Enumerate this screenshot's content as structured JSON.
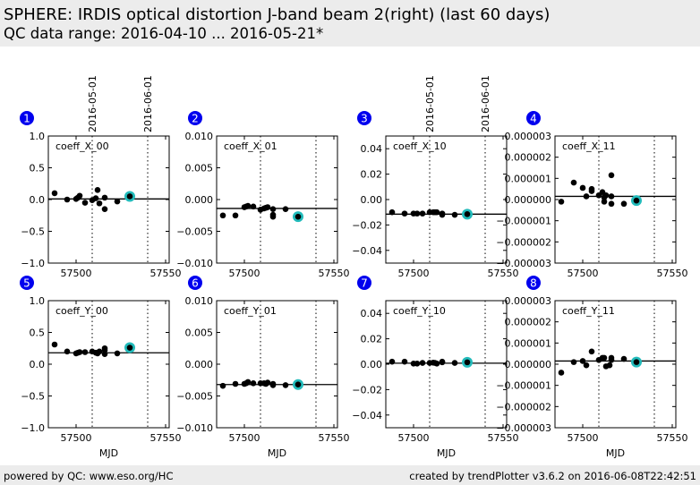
{
  "header": {
    "title": "SPHERE: IRDIS optical distortion J-band beam 2(right) (last 60 days)",
    "subtitle": "QC data range: 2016-04-10 ... 2016-05-21*"
  },
  "footer": {
    "left": "powered by QC: www.eso.org/HC",
    "right": "created by trendPlotter v3.6.2 on 2016-06-08T22:42:51"
  },
  "colors": {
    "point": "#000000",
    "highlight": "#22bbbb",
    "badge": "#0000ee"
  },
  "chart_data": {
    "type": "scatter",
    "xlabel": "MJD",
    "xlim": [
      57484.5,
      57552
    ],
    "xticks": [
      57500,
      57550
    ],
    "date_markers": [
      {
        "mjd": 57509,
        "label": "2016-05-01"
      },
      {
        "mjd": 57540,
        "label": "2016-06-01"
      }
    ],
    "panels": [
      {
        "badge": "1",
        "label": "coeff_X_00",
        "ylim": [
          -1,
          1
        ],
        "yticks": [
          "-1.0",
          "-0.5",
          "0.0",
          "0.5",
          "1.0"
        ],
        "ytick_values": [
          -1,
          -0.5,
          0,
          0.5,
          1
        ],
        "mean": 0.01,
        "points": [
          [
            57488,
            0.1
          ],
          [
            57495,
            0.0
          ],
          [
            57500,
            0.01
          ],
          [
            57501,
            0.03
          ],
          [
            57502,
            0.06
          ],
          [
            57505,
            -0.05
          ],
          [
            57509,
            -0.01
          ],
          [
            57511,
            0.02
          ],
          [
            57512,
            0.15
          ],
          [
            57513,
            -0.06
          ],
          [
            57516,
            0.03
          ],
          [
            57516,
            -0.15
          ],
          [
            57523,
            -0.03
          ]
        ],
        "highlight": [
          57530,
          0.05
        ]
      },
      {
        "badge": "2",
        "label": "coeff_X_01",
        "ylim": [
          -0.01,
          0.01
        ],
        "yticks": [
          "-0.010",
          "-0.005",
          "0.000",
          "0.005",
          "0.010"
        ],
        "ytick_values": [
          -0.01,
          -0.005,
          0,
          0.005,
          0.01
        ],
        "mean": -0.0014,
        "points": [
          [
            57488,
            -0.0025
          ],
          [
            57495,
            -0.0025
          ],
          [
            57500,
            -0.0012
          ],
          [
            57501,
            -0.0011
          ],
          [
            57502,
            -0.001
          ],
          [
            57505,
            -0.0011
          ],
          [
            57509,
            -0.0016
          ],
          [
            57511,
            -0.0014
          ],
          [
            57512,
            -0.0013
          ],
          [
            57513,
            -0.0012
          ],
          [
            57516,
            -0.0015
          ],
          [
            57516,
            -0.0024
          ],
          [
            57516,
            -0.0027
          ],
          [
            57523,
            -0.0015
          ]
        ],
        "highlight": [
          57530,
          -0.0027
        ]
      },
      {
        "badge": "3",
        "label": "coeff_X_10",
        "ylim": [
          -0.05,
          0.05
        ],
        "yticks": [
          "-0.04",
          "-0.02",
          "0.00",
          "0.02",
          "0.04"
        ],
        "ytick_values": [
          -0.04,
          -0.02,
          0,
          0.02,
          0.04
        ],
        "mean": -0.0115,
        "points": [
          [
            57488,
            -0.01
          ],
          [
            57495,
            -0.011
          ],
          [
            57500,
            -0.011
          ],
          [
            57502,
            -0.011
          ],
          [
            57505,
            -0.011
          ],
          [
            57509,
            -0.01
          ],
          [
            57511,
            -0.01
          ],
          [
            57512,
            -0.01
          ],
          [
            57513,
            -0.01
          ],
          [
            57516,
            -0.012
          ],
          [
            57516,
            -0.011
          ],
          [
            57523,
            -0.012
          ]
        ],
        "highlight": [
          57530,
          -0.0115
        ]
      },
      {
        "badge": "4",
        "label": "coeff_X_11",
        "ylim": [
          -3e-06,
          3e-06
        ],
        "yticks": [
          "-0.000003",
          "-0.000002",
          "-0.000001",
          "0.000000",
          "0.000001",
          "0.000002",
          "0.000003"
        ],
        "ytick_values": [
          -3e-06,
          -2e-06,
          -1e-06,
          0,
          1e-06,
          2e-06,
          3e-06
        ],
        "mean": 1.5e-07,
        "points": [
          [
            57488,
            -1e-07
          ],
          [
            57495,
            8e-07
          ],
          [
            57500,
            5.5e-07
          ],
          [
            57502,
            1.5e-07
          ],
          [
            57505,
            5e-07
          ],
          [
            57505,
            4e-07
          ],
          [
            57509,
            2e-07
          ],
          [
            57511,
            3.5e-07
          ],
          [
            57512,
            1e-07
          ],
          [
            57512,
            -1e-07
          ],
          [
            57513,
            2e-07
          ],
          [
            57516,
            1.15e-06
          ],
          [
            57516,
            1.5e-07
          ],
          [
            57516,
            -2e-07
          ],
          [
            57523,
            -2e-07
          ]
        ],
        "highlight": [
          57530,
          -5e-08
        ]
      },
      {
        "badge": "5",
        "label": "coeff_Y_00",
        "ylim": [
          -1,
          1
        ],
        "yticks": [
          "-1.0",
          "-0.5",
          "0.0",
          "0.5",
          "1.0"
        ],
        "ytick_values": [
          -1,
          -0.5,
          0,
          0.5,
          1
        ],
        "mean": 0.18,
        "points": [
          [
            57488,
            0.31
          ],
          [
            57495,
            0.2
          ],
          [
            57500,
            0.17
          ],
          [
            57501,
            0.18
          ],
          [
            57502,
            0.19
          ],
          [
            57505,
            0.19
          ],
          [
            57509,
            0.2
          ],
          [
            57511,
            0.18
          ],
          [
            57512,
            0.17
          ],
          [
            57513,
            0.2
          ],
          [
            57516,
            0.25
          ],
          [
            57516,
            0.22
          ],
          [
            57516,
            0.16
          ],
          [
            57523,
            0.17
          ]
        ],
        "highlight": [
          57530,
          0.26
        ]
      },
      {
        "badge": "6",
        "label": "coeff_Y_01",
        "ylim": [
          -0.01,
          0.01
        ],
        "yticks": [
          "-0.010",
          "-0.005",
          "0.000",
          "0.005",
          "0.010"
        ],
        "ytick_values": [
          -0.01,
          -0.005,
          0,
          0.005,
          0.01
        ],
        "mean": -0.0032,
        "points": [
          [
            57488,
            -0.0034
          ],
          [
            57495,
            -0.0031
          ],
          [
            57500,
            -0.0031
          ],
          [
            57501,
            -0.003
          ],
          [
            57502,
            -0.0028
          ],
          [
            57505,
            -0.003
          ],
          [
            57509,
            -0.003
          ],
          [
            57511,
            -0.003
          ],
          [
            57512,
            -0.0031
          ],
          [
            57513,
            -0.0029
          ],
          [
            57516,
            -0.0031
          ],
          [
            57516,
            -0.0033
          ],
          [
            57523,
            -0.0033
          ]
        ],
        "highlight": [
          57530,
          -0.0032
        ]
      },
      {
        "badge": "7",
        "label": "coeff_Y_10",
        "ylim": [
          -0.05,
          0.05
        ],
        "yticks": [
          "-0.04",
          "-0.02",
          "0.00",
          "0.02",
          "0.04"
        ],
        "ytick_values": [
          -0.04,
          -0.02,
          0,
          0.02,
          0.04
        ],
        "mean": 0.0008,
        "points": [
          [
            57488,
            0.002
          ],
          [
            57495,
            0.002
          ],
          [
            57500,
            0.0005
          ],
          [
            57502,
            0.0005
          ],
          [
            57505,
            0.001
          ],
          [
            57509,
            0.001
          ],
          [
            57511,
            0.0012
          ],
          [
            57512,
            0.001
          ],
          [
            57513,
            0.0005
          ],
          [
            57516,
            0.002
          ],
          [
            57516,
            0.0015
          ],
          [
            57523,
            0.001
          ]
        ],
        "highlight": [
          57530,
          0.0015
        ]
      },
      {
        "badge": "8",
        "label": "coeff_Y_11",
        "ylim": [
          -3e-06,
          3e-06
        ],
        "yticks": [
          "-0.000003",
          "-0.000002",
          "-0.000001",
          "0.000000",
          "0.000001",
          "0.000002",
          "0.000003"
        ],
        "ytick_values": [
          -3e-06,
          -2e-06,
          -1e-06,
          0,
          1e-06,
          2e-06,
          3e-06
        ],
        "mean": 1.5e-07,
        "points": [
          [
            57488,
            -4e-07
          ],
          [
            57495,
            1e-07
          ],
          [
            57500,
            1.5e-07
          ],
          [
            57502,
            -5e-08
          ],
          [
            57505,
            6e-07
          ],
          [
            57509,
            2e-07
          ],
          [
            57511,
            3e-07
          ],
          [
            57512,
            3e-07
          ],
          [
            57513,
            -1e-07
          ],
          [
            57515,
            -5e-08
          ],
          [
            57516,
            3e-07
          ],
          [
            57516,
            2e-07
          ],
          [
            57523,
            2.5e-07
          ]
        ],
        "highlight": [
          57530,
          1e-07
        ]
      }
    ]
  }
}
